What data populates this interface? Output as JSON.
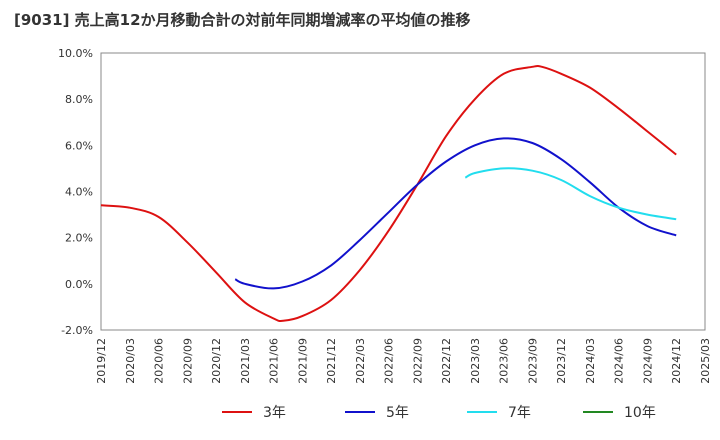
{
  "title": "[9031]  売上高12か月移動合計の対前年同期増減率の平均値の推移",
  "chart_data": {
    "type": "line",
    "ylim": [
      -2.0,
      10.0
    ],
    "yticks": [
      -2.0,
      0.0,
      2.0,
      4.0,
      6.0,
      8.0,
      10.0
    ],
    "ytick_labels": [
      "-2.0%",
      "0.0%",
      "2.0%",
      "4.0%",
      "6.0%",
      "8.0%",
      "10.0%"
    ],
    "xticks": [
      "2019/12",
      "2020/03",
      "2020/06",
      "2020/09",
      "2020/12",
      "2021/03",
      "2021/06",
      "2021/09",
      "2021/12",
      "2022/03",
      "2022/06",
      "2022/09",
      "2022/12",
      "2023/03",
      "2023/06",
      "2023/09",
      "2023/12",
      "2024/03",
      "2024/06",
      "2024/09",
      "2024/12",
      "2025/03"
    ],
    "grid": true,
    "legend_position": "bottom",
    "series": [
      {
        "name": "3年",
        "color": "#dd1111",
        "x": [
          "2019/12",
          "2020/03",
          "2020/06",
          "2020/09",
          "2020/12",
          "2021/03",
          "2021/06",
          "2021/07",
          "2021/09",
          "2021/12",
          "2022/03",
          "2022/06",
          "2022/09",
          "2022/12",
          "2023/03",
          "2023/06",
          "2023/09",
          "2023/10",
          "2023/12",
          "2024/03",
          "2024/06",
          "2024/09",
          "2024/12"
        ],
        "values": [
          3.4,
          3.3,
          2.9,
          1.8,
          0.5,
          -0.8,
          -1.5,
          -1.6,
          -1.4,
          -0.7,
          0.6,
          2.3,
          4.3,
          6.4,
          8.0,
          9.1,
          9.4,
          9.4,
          9.1,
          8.5,
          7.6,
          6.6,
          5.6
        ]
      },
      {
        "name": "5年",
        "color": "#1111cc",
        "x": [
          "2021/02",
          "2021/03",
          "2021/06",
          "2021/09",
          "2021/12",
          "2022/03",
          "2022/06",
          "2022/09",
          "2022/12",
          "2023/03",
          "2023/06",
          "2023/09",
          "2023/12",
          "2024/03",
          "2024/06",
          "2024/09",
          "2024/12"
        ],
        "values": [
          0.2,
          0.0,
          -0.2,
          0.1,
          0.8,
          1.9,
          3.1,
          4.3,
          5.3,
          6.0,
          6.3,
          6.1,
          5.4,
          4.4,
          3.3,
          2.5,
          2.1
        ]
      },
      {
        "name": "7年",
        "color": "#22ddee",
        "x": [
          "2023/02",
          "2023/03",
          "2023/06",
          "2023/09",
          "2023/12",
          "2024/03",
          "2024/06",
          "2024/09",
          "2024/12"
        ],
        "values": [
          4.6,
          4.8,
          5.0,
          4.9,
          4.5,
          3.8,
          3.3,
          3.0,
          2.8
        ]
      },
      {
        "name": "10年",
        "color": "#228822",
        "x": [],
        "values": []
      }
    ]
  }
}
